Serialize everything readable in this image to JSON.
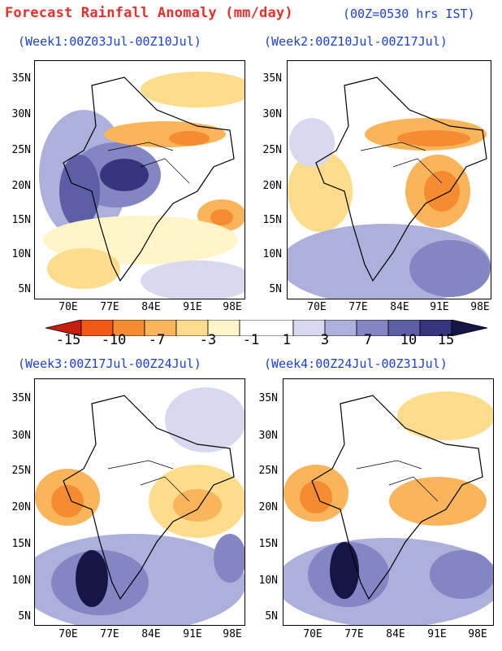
{
  "header": {
    "title": "Forecast Rainfall Anomaly (mm/day)",
    "subtitle": "(00Z=0530 hrs IST)"
  },
  "panels": [
    {
      "label": "(Week1:00Z03Jul-00Z10Jul)"
    },
    {
      "label": "(Week2:00Z10Jul-00Z17Jul)"
    },
    {
      "label": "(Week3:00Z17Jul-00Z24Jul)"
    },
    {
      "label": "(Week4:00Z24Jul-00Z31Jul)"
    }
  ],
  "axes": {
    "lat_labels": [
      "35N",
      "30N",
      "25N",
      "20N",
      "15N",
      "10N",
      "5N"
    ],
    "lon_labels": [
      "70E",
      "77E",
      "84E",
      "91E",
      "98E"
    ]
  },
  "colorbar": {
    "labels": [
      "-15",
      "-10",
      "-7",
      "-3",
      "-1",
      "1",
      "3",
      "7",
      "10",
      "15"
    ],
    "colors": [
      "#c81e10",
      "#f05a14",
      "#f58c32",
      "#fab45a",
      "#fddc8c",
      "#fff5c8",
      "#ffffff",
      "#d8d8ee",
      "#aeb0dc",
      "#8486c4",
      "#5c5ea6",
      "#36367e",
      "#161646"
    ]
  }
}
